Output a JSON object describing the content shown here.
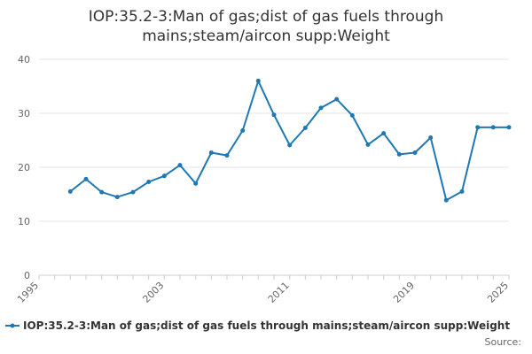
{
  "title": "IOP:35.2-3:Man of gas;dist of gas fuels through mains;steam/aircon supp:Weight",
  "source": "Source:",
  "colors": {
    "series": "#1f78b4",
    "grid": "#e6e6e6",
    "axis": "#cccccc"
  },
  "chart_data": {
    "type": "line",
    "title": "IOP:35.2-3:Man of gas;dist of gas fuels through mains;steam/aircon supp:Weight",
    "xlabel": "",
    "ylabel": "",
    "xlim": [
      1995,
      2025
    ],
    "ylim": [
      0,
      40
    ],
    "x_ticks": [
      "1995",
      "2003",
      "2011",
      "2019",
      "2025"
    ],
    "y_ticks": [
      "0",
      "10",
      "20",
      "30",
      "40"
    ],
    "grid": "horizontal",
    "legend": "bottom-left",
    "series": [
      {
        "name": "IOP:35.2-3:Man of gas;dist of gas fuels through mains;steam/aircon supp:Weight",
        "x": [
          1997,
          1998,
          1999,
          2000,
          2001,
          2002,
          2003,
          2004,
          2005,
          2006,
          2007,
          2008,
          2009,
          2010,
          2011,
          2012,
          2013,
          2014,
          2015,
          2016,
          2017,
          2018,
          2019,
          2020,
          2021,
          2022,
          2023,
          2024,
          2025
        ],
        "values": [
          15.5,
          17.8,
          15.4,
          14.5,
          15.4,
          17.3,
          18.4,
          20.4,
          17.0,
          22.7,
          22.2,
          26.8,
          36.0,
          29.7,
          24.1,
          27.3,
          31.0,
          32.6,
          29.6,
          24.2,
          26.3,
          22.4,
          22.7,
          25.5,
          13.9,
          15.5,
          27.4,
          27.4,
          27.4
        ]
      }
    ]
  }
}
